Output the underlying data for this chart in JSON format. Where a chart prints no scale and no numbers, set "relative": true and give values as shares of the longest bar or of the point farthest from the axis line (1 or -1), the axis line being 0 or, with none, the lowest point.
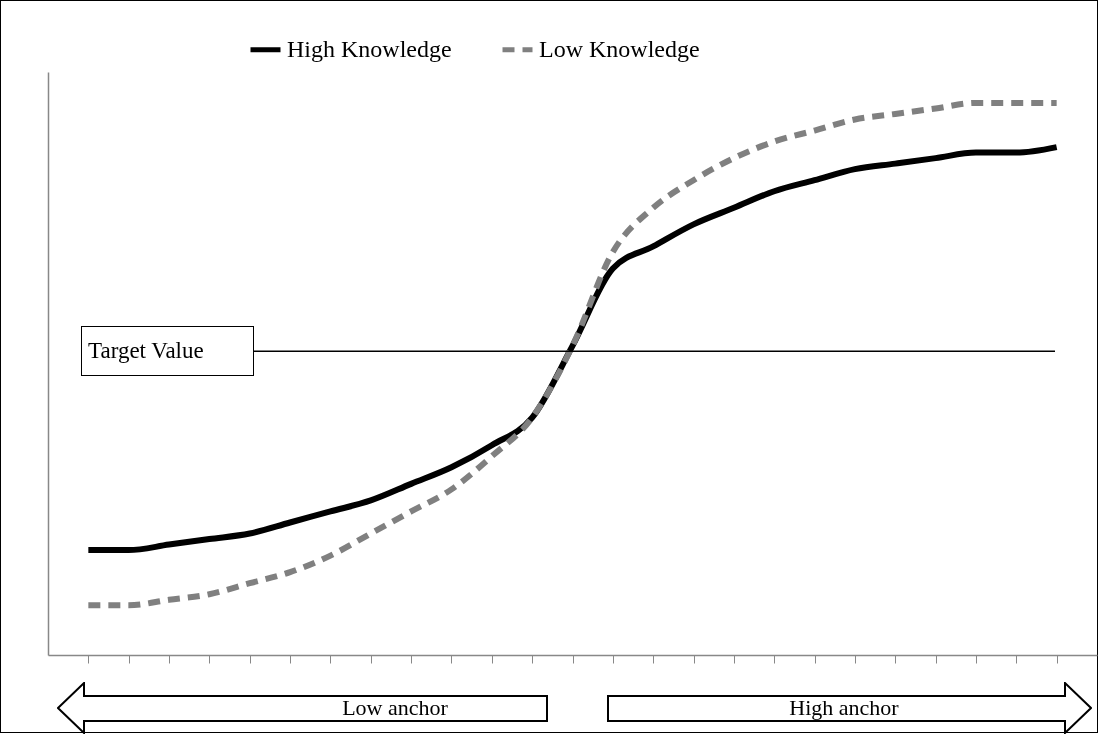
{
  "chart_data": {
    "type": "line",
    "relative": true,
    "categories": [
      null,
      null,
      null,
      null,
      null,
      null,
      null,
      null,
      null,
      null,
      null,
      null,
      null,
      null,
      null,
      null,
      null,
      null,
      null,
      null,
      null,
      null,
      null,
      null,
      null
    ],
    "series": [
      {
        "name": "High Knowledge",
        "color": "#000000",
        "line_style": "solid",
        "values": [
          0.19,
          0.19,
          0.2,
          0.21,
          0.22,
          0.24,
          0.26,
          0.28,
          0.31,
          0.34,
          0.38,
          0.43,
          0.56,
          0.7,
          0.74,
          0.78,
          0.81,
          0.84,
          0.86,
          0.88,
          0.89,
          0.9,
          0.91,
          0.91,
          0.92
        ]
      },
      {
        "name": "Low Knowledge",
        "color": "#808080",
        "line_style": "dashed",
        "values": [
          0.09,
          0.09,
          0.1,
          0.11,
          0.13,
          0.15,
          0.18,
          0.22,
          0.26,
          0.3,
          0.36,
          0.43,
          0.56,
          0.73,
          0.81,
          0.86,
          0.9,
          0.93,
          0.95,
          0.97,
          0.98,
          0.99,
          1,
          1,
          1
        ]
      }
    ],
    "ref_lines": [
      {
        "axis": "y",
        "value": 0.55,
        "label": "Target Value"
      }
    ],
    "annotations": [
      "Low anchor",
      "High anchor"
    ],
    "legend": "top",
    "marker": "none",
    "grid": false
  }
}
